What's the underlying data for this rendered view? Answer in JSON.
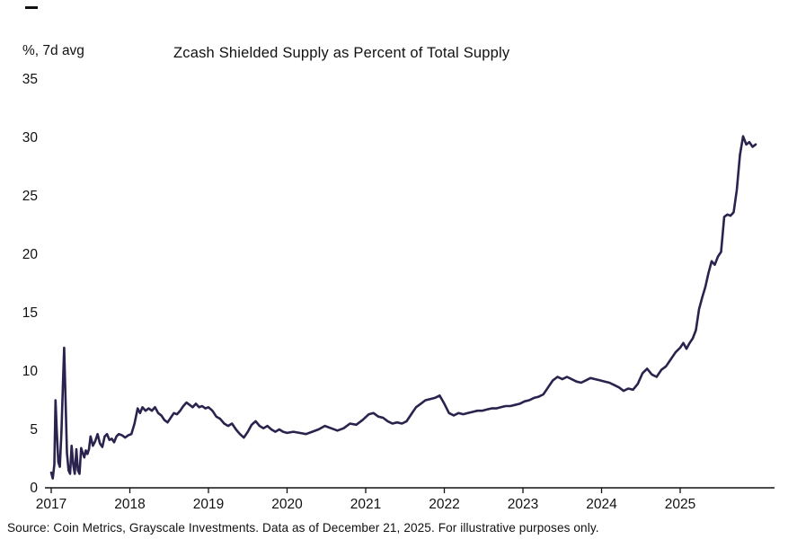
{
  "page": {
    "title": "Zcash Shielded Supply as Percent of Total Supply",
    "y_unit_label": "%, 7d avg",
    "source": "Source: Coin Metrics, Grayscale Investments. Data as of December 21, 2025. For illustrative purposes only."
  },
  "colors": {
    "line": "#29234e",
    "axis": "#111111",
    "text": "#111111",
    "background": "#ffffff"
  },
  "chart_data": {
    "type": "line",
    "title": "Zcash Shielded Supply as Percent of Total Supply",
    "xlabel": "",
    "ylabel": "%, 7d avg",
    "ylim": [
      0,
      35
    ],
    "xlim": [
      2017,
      2026
    ],
    "grid": false,
    "legend": "none",
    "y_ticks": [
      0,
      5,
      10,
      15,
      20,
      25,
      30,
      35
    ],
    "x_ticks": [
      2017,
      2018,
      2019,
      2020,
      2021,
      2022,
      2023,
      2024,
      2025
    ],
    "series": [
      {
        "name": "Zcash shielded supply as percent of total supply (7d avg)",
        "points": [
          [
            2017.0,
            1.3
          ],
          [
            2017.02,
            0.8
          ],
          [
            2017.04,
            2.0
          ],
          [
            2017.055,
            7.5
          ],
          [
            2017.07,
            5.0
          ],
          [
            2017.09,
            2.2
          ],
          [
            2017.11,
            1.8
          ],
          [
            2017.13,
            4.8
          ],
          [
            2017.15,
            9.0
          ],
          [
            2017.165,
            12.0
          ],
          [
            2017.18,
            8.0
          ],
          [
            2017.2,
            3.0
          ],
          [
            2017.22,
            1.5
          ],
          [
            2017.24,
            1.2
          ],
          [
            2017.26,
            3.6
          ],
          [
            2017.28,
            2.0
          ],
          [
            2017.3,
            1.2
          ],
          [
            2017.32,
            3.3
          ],
          [
            2017.34,
            1.5
          ],
          [
            2017.36,
            1.2
          ],
          [
            2017.38,
            3.4
          ],
          [
            2017.4,
            3.0
          ],
          [
            2017.42,
            2.6
          ],
          [
            2017.44,
            3.2
          ],
          [
            2017.46,
            2.9
          ],
          [
            2017.48,
            3.3
          ],
          [
            2017.5,
            4.4
          ],
          [
            2017.53,
            3.6
          ],
          [
            2017.56,
            4.0
          ],
          [
            2017.59,
            4.6
          ],
          [
            2017.62,
            3.8
          ],
          [
            2017.65,
            3.5
          ],
          [
            2017.68,
            4.4
          ],
          [
            2017.71,
            4.6
          ],
          [
            2017.74,
            4.1
          ],
          [
            2017.77,
            4.2
          ],
          [
            2017.8,
            3.9
          ],
          [
            2017.83,
            4.4
          ],
          [
            2017.86,
            4.6
          ],
          [
            2017.9,
            4.5
          ],
          [
            2017.94,
            4.3
          ],
          [
            2017.98,
            4.5
          ],
          [
            2018.02,
            4.6
          ],
          [
            2018.06,
            5.5
          ],
          [
            2018.1,
            6.8
          ],
          [
            2018.13,
            6.4
          ],
          [
            2018.16,
            6.9
          ],
          [
            2018.2,
            6.6
          ],
          [
            2018.24,
            6.8
          ],
          [
            2018.28,
            6.6
          ],
          [
            2018.32,
            6.9
          ],
          [
            2018.36,
            6.4
          ],
          [
            2018.4,
            6.2
          ],
          [
            2018.44,
            5.8
          ],
          [
            2018.48,
            5.6
          ],
          [
            2018.52,
            6.0
          ],
          [
            2018.56,
            6.4
          ],
          [
            2018.6,
            6.3
          ],
          [
            2018.64,
            6.6
          ],
          [
            2018.68,
            7.0
          ],
          [
            2018.72,
            7.3
          ],
          [
            2018.76,
            7.1
          ],
          [
            2018.8,
            6.9
          ],
          [
            2018.84,
            7.2
          ],
          [
            2018.88,
            6.9
          ],
          [
            2018.92,
            7.0
          ],
          [
            2018.96,
            6.8
          ],
          [
            2019.0,
            6.9
          ],
          [
            2019.05,
            6.6
          ],
          [
            2019.1,
            6.1
          ],
          [
            2019.15,
            5.9
          ],
          [
            2019.2,
            5.5
          ],
          [
            2019.25,
            5.3
          ],
          [
            2019.3,
            5.5
          ],
          [
            2019.35,
            5.0
          ],
          [
            2019.4,
            4.6
          ],
          [
            2019.45,
            4.3
          ],
          [
            2019.5,
            4.8
          ],
          [
            2019.55,
            5.4
          ],
          [
            2019.6,
            5.7
          ],
          [
            2019.65,
            5.3
          ],
          [
            2019.7,
            5.1
          ],
          [
            2019.75,
            5.3
          ],
          [
            2019.8,
            5.0
          ],
          [
            2019.85,
            4.8
          ],
          [
            2019.9,
            5.0
          ],
          [
            2019.95,
            4.8
          ],
          [
            2020.0,
            4.7
          ],
          [
            2020.08,
            4.8
          ],
          [
            2020.16,
            4.7
          ],
          [
            2020.24,
            4.6
          ],
          [
            2020.32,
            4.8
          ],
          [
            2020.4,
            5.0
          ],
          [
            2020.48,
            5.3
          ],
          [
            2020.56,
            5.1
          ],
          [
            2020.64,
            4.9
          ],
          [
            2020.72,
            5.1
          ],
          [
            2020.8,
            5.5
          ],
          [
            2020.88,
            5.4
          ],
          [
            2020.96,
            5.8
          ],
          [
            2021.04,
            6.3
          ],
          [
            2021.1,
            6.4
          ],
          [
            2021.16,
            6.1
          ],
          [
            2021.22,
            6.0
          ],
          [
            2021.28,
            5.7
          ],
          [
            2021.34,
            5.5
          ],
          [
            2021.4,
            5.6
          ],
          [
            2021.46,
            5.5
          ],
          [
            2021.52,
            5.7
          ],
          [
            2021.58,
            6.3
          ],
          [
            2021.64,
            6.9
          ],
          [
            2021.7,
            7.2
          ],
          [
            2021.76,
            7.5
          ],
          [
            2021.82,
            7.6
          ],
          [
            2021.88,
            7.7
          ],
          [
            2021.94,
            7.9
          ],
          [
            2022.0,
            7.2
          ],
          [
            2022.06,
            6.4
          ],
          [
            2022.12,
            6.2
          ],
          [
            2022.18,
            6.4
          ],
          [
            2022.24,
            6.3
          ],
          [
            2022.3,
            6.4
          ],
          [
            2022.36,
            6.5
          ],
          [
            2022.42,
            6.6
          ],
          [
            2022.48,
            6.6
          ],
          [
            2022.54,
            6.7
          ],
          [
            2022.6,
            6.8
          ],
          [
            2022.66,
            6.8
          ],
          [
            2022.72,
            6.9
          ],
          [
            2022.78,
            7.0
          ],
          [
            2022.84,
            7.0
          ],
          [
            2022.9,
            7.1
          ],
          [
            2022.96,
            7.2
          ],
          [
            2023.02,
            7.4
          ],
          [
            2023.08,
            7.5
          ],
          [
            2023.14,
            7.7
          ],
          [
            2023.2,
            7.8
          ],
          [
            2023.26,
            8.0
          ],
          [
            2023.32,
            8.6
          ],
          [
            2023.38,
            9.2
          ],
          [
            2023.44,
            9.5
          ],
          [
            2023.5,
            9.3
          ],
          [
            2023.56,
            9.5
          ],
          [
            2023.62,
            9.3
          ],
          [
            2023.68,
            9.1
          ],
          [
            2023.74,
            9.0
          ],
          [
            2023.8,
            9.2
          ],
          [
            2023.86,
            9.4
          ],
          [
            2023.92,
            9.3
          ],
          [
            2023.98,
            9.2
          ],
          [
            2024.04,
            9.1
          ],
          [
            2024.1,
            9.0
          ],
          [
            2024.16,
            8.8
          ],
          [
            2024.22,
            8.6
          ],
          [
            2024.28,
            8.3
          ],
          [
            2024.34,
            8.5
          ],
          [
            2024.4,
            8.4
          ],
          [
            2024.46,
            8.9
          ],
          [
            2024.52,
            9.8
          ],
          [
            2024.58,
            10.2
          ],
          [
            2024.64,
            9.7
          ],
          [
            2024.7,
            9.5
          ],
          [
            2024.76,
            10.1
          ],
          [
            2024.82,
            10.4
          ],
          [
            2024.88,
            11.0
          ],
          [
            2024.94,
            11.6
          ],
          [
            2025.0,
            12.0
          ],
          [
            2025.04,
            12.4
          ],
          [
            2025.08,
            11.9
          ],
          [
            2025.12,
            12.4
          ],
          [
            2025.16,
            12.8
          ],
          [
            2025.2,
            13.5
          ],
          [
            2025.24,
            15.3
          ],
          [
            2025.28,
            16.3
          ],
          [
            2025.32,
            17.2
          ],
          [
            2025.36,
            18.4
          ],
          [
            2025.4,
            19.4
          ],
          [
            2025.44,
            19.1
          ],
          [
            2025.48,
            19.8
          ],
          [
            2025.52,
            20.2
          ],
          [
            2025.56,
            23.2
          ],
          [
            2025.6,
            23.4
          ],
          [
            2025.64,
            23.3
          ],
          [
            2025.68,
            23.6
          ],
          [
            2025.72,
            25.5
          ],
          [
            2025.76,
            28.5
          ],
          [
            2025.8,
            30.1
          ],
          [
            2025.84,
            29.4
          ],
          [
            2025.88,
            29.6
          ],
          [
            2025.92,
            29.2
          ],
          [
            2025.96,
            29.4
          ]
        ]
      }
    ]
  }
}
